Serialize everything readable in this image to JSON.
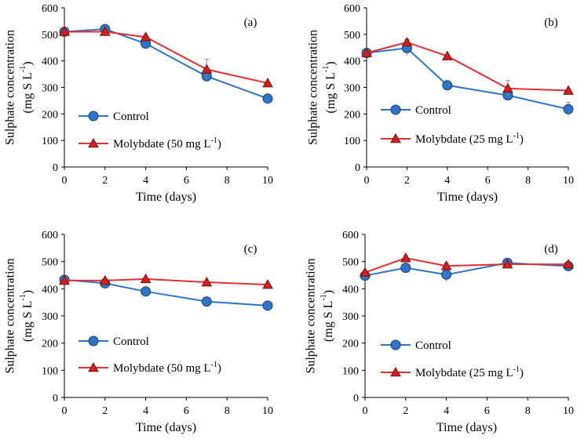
{
  "figure": {
    "panels": [
      "a",
      "b",
      "c",
      "d"
    ]
  },
  "colors": {
    "control_fill": "#2e75c9",
    "control_line": "#2e75c9",
    "control_edge": "#1f3f66",
    "molybdate_fill": "#d21f1f",
    "molybdate_line": "#e03030",
    "molybdate_edge": "#7a1010",
    "axis": "#000000",
    "error_bar": "#888888"
  },
  "chart_data": [
    {
      "type": "line",
      "panel_label": "(a)",
      "xlabel": "Time (days)",
      "ylabel_line1": "Sulphate concentration",
      "ylabel_line2": "(mg S L",
      "ylabel_sup": "-1",
      "ylabel_close": ")",
      "xlim": [
        0,
        10
      ],
      "ylim": [
        0,
        600
      ],
      "xticks": [
        0,
        2,
        4,
        6,
        8,
        10
      ],
      "yticks": [
        0,
        100,
        200,
        300,
        400,
        500,
        600
      ],
      "legend_position": "lower-left",
      "series": [
        {
          "name": "Control",
          "legend_label": "Control",
          "legend_sup": "",
          "legend_tail": "",
          "marker": "circle",
          "x": [
            0,
            2,
            4,
            7,
            10
          ],
          "y": [
            510,
            520,
            465,
            342,
            258
          ],
          "err": [
            0,
            10,
            5,
            10,
            10
          ]
        },
        {
          "name": "Molybdate (50 mg L-1)",
          "legend_label": "Molybdate (50 mg L",
          "legend_sup": "-1",
          "legend_tail": ")",
          "marker": "triangle",
          "x": [
            0,
            2,
            4,
            7,
            10
          ],
          "y": [
            510,
            510,
            490,
            368,
            316
          ],
          "err": [
            0,
            5,
            5,
            38,
            5
          ]
        }
      ]
    },
    {
      "type": "line",
      "panel_label": "(b)",
      "xlabel": "Time (days)",
      "ylabel_line1": "Sulphate concentration",
      "ylabel_line2": "(mg S L",
      "ylabel_sup": "-1",
      "ylabel_close": ")",
      "xlim": [
        0,
        10
      ],
      "ylim": [
        0,
        600
      ],
      "xticks": [
        0,
        2,
        4,
        6,
        8,
        10
      ],
      "yticks": [
        0,
        100,
        200,
        300,
        400,
        500,
        600
      ],
      "legend_position": "lower-left",
      "series": [
        {
          "name": "Control",
          "legend_label": "Control",
          "legend_sup": "",
          "legend_tail": "",
          "marker": "circle",
          "x": [
            0,
            2,
            4,
            7,
            10
          ],
          "y": [
            430,
            448,
            308,
            270,
            218
          ],
          "err": [
            5,
            30,
            5,
            10,
            25
          ]
        },
        {
          "name": "Molybdate (25 mg L-1)",
          "legend_label": "Molybdate (25 mg L",
          "legend_sup": "-1",
          "legend_tail": ")",
          "marker": "triangle",
          "x": [
            0,
            2,
            4,
            7,
            10
          ],
          "y": [
            430,
            470,
            418,
            296,
            288
          ],
          "err": [
            5,
            12,
            5,
            30,
            5
          ]
        }
      ]
    },
    {
      "type": "line",
      "panel_label": "(c)",
      "xlabel": "Time (days)",
      "ylabel_line1": "Sulphate concentration",
      "ylabel_line2": "(mg S L",
      "ylabel_sup": "-1",
      "ylabel_close": ")",
      "xlim": [
        0,
        10
      ],
      "ylim": [
        0,
        600
      ],
      "xticks": [
        0,
        2,
        4,
        6,
        8,
        10
      ],
      "yticks": [
        0,
        100,
        200,
        300,
        400,
        500,
        600
      ],
      "legend_position": "lower-left",
      "series": [
        {
          "name": "Control",
          "legend_label": "Control",
          "legend_sup": "",
          "legend_tail": "",
          "marker": "circle",
          "x": [
            0,
            2,
            4,
            7,
            10
          ],
          "y": [
            433,
            420,
            390,
            353,
            338
          ],
          "err": [
            0,
            0,
            0,
            0,
            0
          ]
        },
        {
          "name": "Molybdate (50 mg L-1)",
          "legend_label": "Molybdate (50 mg L",
          "legend_sup": "-1",
          "legend_tail": ")",
          "marker": "triangle",
          "x": [
            0,
            2,
            4,
            7,
            10
          ],
          "y": [
            430,
            430,
            436,
            424,
            415
          ],
          "err": [
            0,
            0,
            0,
            0,
            0
          ]
        }
      ]
    },
    {
      "type": "line",
      "panel_label": "(d)",
      "xlabel": "Time (days)",
      "ylabel_line1": "Sulphate concentration",
      "ylabel_line2": "(mg S L",
      "ylabel_sup": "-1",
      "ylabel_close": ")",
      "xlim": [
        0,
        10
      ],
      "ylim": [
        0,
        600
      ],
      "xticks": [
        0,
        2,
        4,
        6,
        8,
        10
      ],
      "yticks": [
        0,
        100,
        200,
        300,
        400,
        500,
        600
      ],
      "legend_position": "lower-left",
      "series": [
        {
          "name": "Control",
          "legend_label": "Control",
          "legend_sup": "",
          "legend_tail": "",
          "marker": "circle",
          "x": [
            0,
            2,
            4,
            7,
            10
          ],
          "y": [
            448,
            477,
            452,
            495,
            483
          ],
          "err": [
            5,
            5,
            25,
            5,
            5
          ]
        },
        {
          "name": "Molybdate (25 mg L-1)",
          "legend_label": "Molybdate (25 mg L",
          "legend_sup": "-1",
          "legend_tail": ")",
          "marker": "triangle",
          "x": [
            0,
            2,
            4,
            7,
            10
          ],
          "y": [
            460,
            513,
            484,
            490,
            490
          ],
          "err": [
            5,
            10,
            10,
            5,
            5
          ]
        }
      ]
    }
  ]
}
